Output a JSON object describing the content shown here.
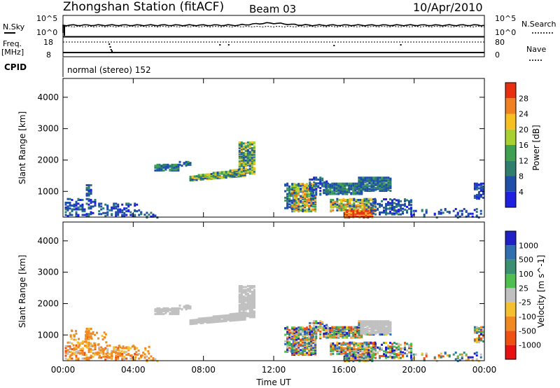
{
  "header": {
    "station": "Zhongshan Station (fitACF)",
    "beam": "Beam 03",
    "date": "10/Apr/2010"
  },
  "summary_panels": {
    "nsky_label": "N.Sky",
    "nsky_top": "10^5",
    "nsky_bottom": "10^0",
    "nsearch_label": "N.Search",
    "nsearch_top": "10^5",
    "nsearch_bottom": "10^0",
    "freq_label": "Freq.",
    "freq_unit": "[MHz]",
    "freq_top": "18",
    "freq_bottom": "8",
    "nave_label": "Nave",
    "nave_top": "80",
    "nave_bottom": "0",
    "cpid_label": "CPID",
    "cpid_value": "normal (stereo) 152"
  },
  "chart_data": [
    {
      "type": "heatmap",
      "name": "power",
      "ylabel": "Slant Range [km]",
      "yticks": [
        1000,
        2000,
        3000,
        4000
      ],
      "ylim": [
        180,
        4600
      ],
      "xlim": [
        0,
        24
      ],
      "colorbar": {
        "label": "Power [dB]",
        "ticks": [
          "4",
          "8",
          "12",
          "16",
          "20",
          "24",
          "28"
        ],
        "colors": [
          "#2020e0",
          "#1f4fa8",
          "#2f7f6f",
          "#3ea050",
          "#a8d030",
          "#f5c020",
          "#f08020",
          "#e83010"
        ]
      }
    },
    {
      "type": "heatmap",
      "name": "velocity",
      "ylabel": "Slant Range [km]",
      "yticks": [
        1000,
        2000,
        3000,
        4000
      ],
      "ylim": [
        180,
        4600
      ],
      "xlim": [
        0,
        24
      ],
      "xlabel": "Time UT",
      "xticks": [
        "00:00",
        "04:00",
        "08:00",
        "12:00",
        "16:00",
        "20:00",
        "00:00"
      ],
      "colorbar": {
        "label": "Velocity [m s^-1]",
        "ticks": [
          "1000",
          "500",
          "100",
          "25",
          "-25",
          "-100",
          "-500",
          "-1000"
        ],
        "colors": [
          "#2020c8",
          "#2f6fb0",
          "#3a9070",
          "#4fc04f",
          "#c0c0c0",
          "#f5c030",
          "#f08a20",
          "#f05010",
          "#e81010"
        ]
      }
    }
  ]
}
